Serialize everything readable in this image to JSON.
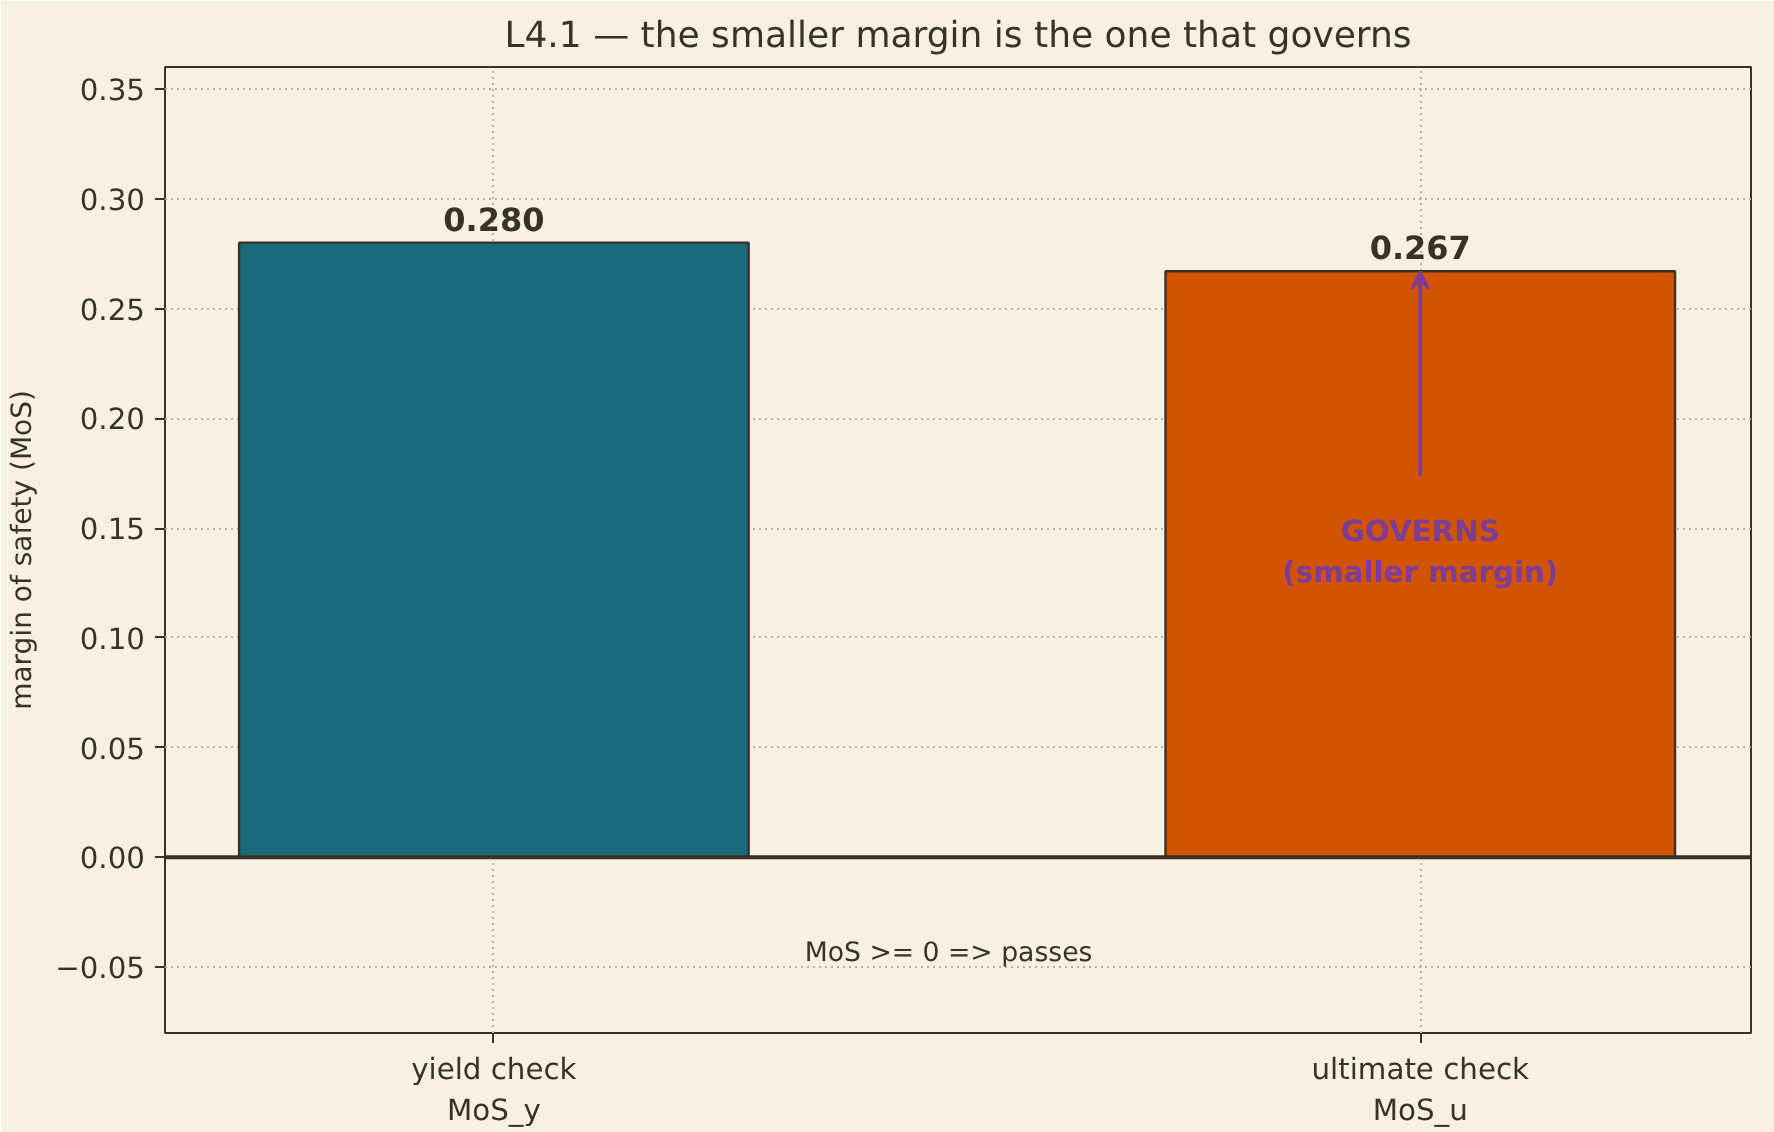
{
  "chart_data": {
    "type": "bar",
    "title": "L4.1 — the smaller margin is the one that governs",
    "ylabel": "margin of safety (MoS)",
    "categories": [
      "yield check\nMoS_y",
      "ultimate check\nMoS_u"
    ],
    "values": [
      0.28,
      0.267
    ],
    "colors": [
      "#1b6a7a",
      "#d35400"
    ],
    "value_labels": [
      "0.280",
      "0.267"
    ],
    "ylim": [
      -0.08,
      0.36
    ],
    "yticks": [
      {
        "value": -0.05,
        "label": "−0.05"
      },
      {
        "value": 0,
        "label": "0.00"
      },
      {
        "value": 0.05,
        "label": "0.05"
      },
      {
        "value": 0.1,
        "label": "0.10"
      },
      {
        "value": 0.15,
        "label": "0.15"
      },
      {
        "value": 0.2,
        "label": "0.20"
      },
      {
        "value": 0.25,
        "label": "0.25"
      },
      {
        "value": 0.3,
        "label": "0.30"
      },
      {
        "value": 0.35,
        "label": "0.35"
      }
    ],
    "grid": true,
    "ref_lines": [
      {
        "axis": "y",
        "value": 0,
        "color": "#3a3128"
      }
    ],
    "annotations": [
      "GOVERNS\n(smaller margin)",
      "MoS >= 0  =>  passes"
    ]
  }
}
